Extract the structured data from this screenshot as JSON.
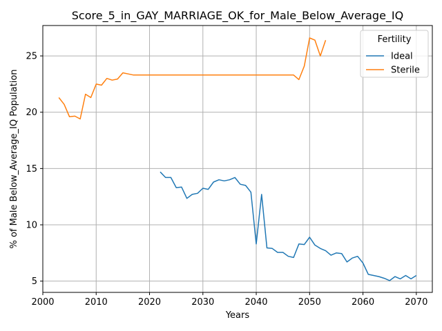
{
  "chart_data": {
    "type": "line",
    "title": "Score_5_in_GAY_MARRIAGE_OK_for_Male_Below_Average_IQ",
    "xlabel": "Years",
    "ylabel": "% of Male Below_Average_IQ Population",
    "xlim": [
      2000,
      2073
    ],
    "ylim": [
      4,
      27.7
    ],
    "xticks": [
      2000,
      2010,
      2020,
      2030,
      2040,
      2050,
      2060,
      2070
    ],
    "yticks": [
      5,
      10,
      15,
      20,
      25
    ],
    "grid": true,
    "legend": {
      "title": "Fertility",
      "placement": "top-right"
    },
    "series": [
      {
        "name": "Ideal",
        "color": "#1f77b4",
        "x": [
          2022,
          2023,
          2024,
          2025,
          2026,
          2027,
          2028,
          2029,
          2030,
          2031,
          2032,
          2033,
          2034,
          2035,
          2036,
          2037,
          2038,
          2039,
          2040,
          2041,
          2042,
          2043,
          2044,
          2045,
          2046,
          2047,
          2048,
          2049,
          2050,
          2051,
          2052,
          2053,
          2054,
          2055,
          2056,
          2057,
          2058,
          2059,
          2060,
          2061,
          2062,
          2063,
          2064,
          2065,
          2066,
          2067,
          2068,
          2069,
          2070
        ],
        "y": [
          14.7,
          14.2,
          14.2,
          13.3,
          13.35,
          12.35,
          12.7,
          12.8,
          13.25,
          13.15,
          13.8,
          14.0,
          13.9,
          14.0,
          14.2,
          13.6,
          13.5,
          12.9,
          8.3,
          12.7,
          7.95,
          7.9,
          7.55,
          7.55,
          7.2,
          7.1,
          8.3,
          8.25,
          8.9,
          8.2,
          7.9,
          7.7,
          7.3,
          7.5,
          7.45,
          6.7,
          7.05,
          7.2,
          6.6,
          5.6,
          5.5,
          5.4,
          5.25,
          5.05,
          5.4,
          5.2,
          5.5,
          5.2,
          5.5
        ]
      },
      {
        "name": "Sterile",
        "color": "#ff7f0e",
        "x": [
          2003,
          2004,
          2005,
          2006,
          2007,
          2008,
          2009,
          2010,
          2011,
          2012,
          2013,
          2014,
          2015,
          2016,
          2017,
          2018,
          2019,
          2020,
          2021,
          2022,
          2023,
          2024,
          2025,
          2026,
          2027,
          2028,
          2029,
          2030,
          2031,
          2032,
          2033,
          2034,
          2035,
          2036,
          2037,
          2038,
          2039,
          2040,
          2041,
          2042,
          2043,
          2044,
          2045,
          2046,
          2047,
          2048,
          2049,
          2050,
          2051,
          2052,
          2053
        ],
        "y": [
          21.3,
          20.7,
          19.6,
          19.65,
          19.4,
          21.6,
          21.3,
          22.5,
          22.4,
          23.0,
          22.85,
          22.95,
          23.5,
          23.4,
          23.3,
          23.3,
          23.3,
          23.3,
          23.3,
          23.3,
          23.3,
          23.3,
          23.3,
          23.3,
          23.3,
          23.3,
          23.3,
          23.3,
          23.3,
          23.3,
          23.3,
          23.3,
          23.3,
          23.3,
          23.3,
          23.3,
          23.3,
          23.3,
          23.3,
          23.3,
          23.3,
          23.3,
          23.3,
          23.3,
          23.3,
          22.9,
          24.1,
          26.6,
          26.4,
          25.0,
          26.4
        ]
      }
    ]
  }
}
